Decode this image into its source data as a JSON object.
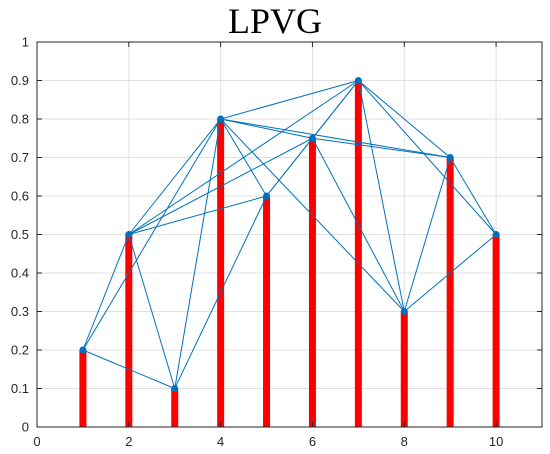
{
  "chart_data": {
    "type": "bar",
    "title": "LPVG",
    "xlabel": "",
    "ylabel": "",
    "xlim": [
      0,
      11
    ],
    "ylim": [
      0,
      1
    ],
    "grid": true,
    "x_ticks": [
      0,
      2,
      4,
      6,
      8,
      10
    ],
    "y_ticks": [
      0,
      0.1,
      0.2,
      0.3,
      0.4,
      0.5,
      0.6,
      0.7,
      0.8,
      0.9,
      1
    ],
    "x": [
      1,
      2,
      3,
      4,
      5,
      6,
      7,
      8,
      9,
      10
    ],
    "values": [
      0.2,
      0.5,
      0.1,
      0.8,
      0.6,
      0.75,
      0.9,
      0.3,
      0.7,
      0.5
    ],
    "edges": [
      [
        1,
        2
      ],
      [
        1,
        3
      ],
      [
        1,
        4
      ],
      [
        2,
        3
      ],
      [
        2,
        4
      ],
      [
        2,
        5
      ],
      [
        2,
        6
      ],
      [
        2,
        7
      ],
      [
        3,
        4
      ],
      [
        3,
        5
      ],
      [
        4,
        5
      ],
      [
        4,
        6
      ],
      [
        4,
        7
      ],
      [
        4,
        9
      ],
      [
        4,
        8
      ],
      [
        5,
        6
      ],
      [
        5,
        7
      ],
      [
        6,
        7
      ],
      [
        6,
        8
      ],
      [
        6,
        9
      ],
      [
        7,
        8
      ],
      [
        7,
        9
      ],
      [
        7,
        10
      ],
      [
        8,
        9
      ],
      [
        8,
        10
      ],
      [
        9,
        10
      ]
    ],
    "colors": {
      "bars": "#ff0000",
      "edges": "#0072bd",
      "nodes": "#0072bd",
      "grid": "#e0e0e0",
      "axis": "#262626"
    }
  }
}
